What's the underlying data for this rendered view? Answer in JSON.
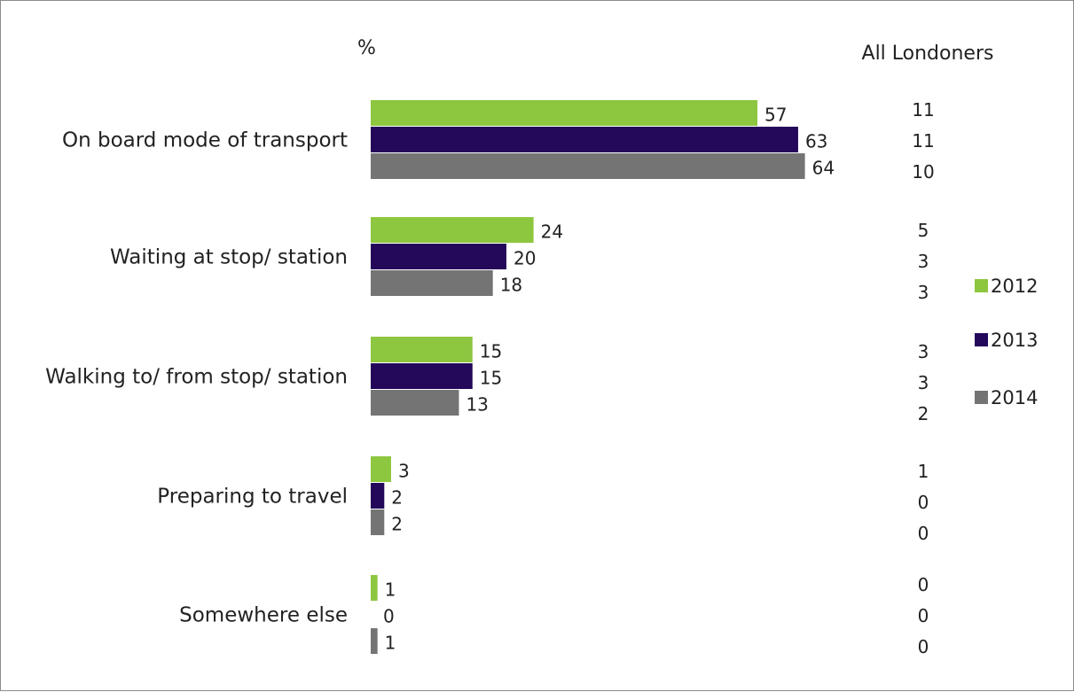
{
  "chart_data": {
    "type": "bar",
    "orientation": "horizontal",
    "value_axis_label": "%",
    "side_column_title": "All Londoners",
    "categories": [
      "On board mode of transport",
      "Waiting at stop/ station",
      "Walking to/ from stop/ station",
      "Preparing to travel",
      "Somewhere else"
    ],
    "series": [
      {
        "name": "2012",
        "color": "#8dc63f",
        "values": [
          57,
          24,
          15,
          3,
          1
        ],
        "all_londoners": [
          11,
          5,
          3,
          1,
          0
        ]
      },
      {
        "name": "2013",
        "color": "#24085a",
        "values": [
          63,
          20,
          15,
          2,
          0
        ],
        "all_londoners": [
          11,
          3,
          3,
          0,
          0
        ]
      },
      {
        "name": "2014",
        "color": "#747474",
        "values": [
          64,
          18,
          13,
          2,
          1
        ],
        "all_londoners": [
          10,
          3,
          2,
          0,
          0
        ]
      }
    ],
    "xlim": [
      0,
      100
    ],
    "grid": false,
    "legend_position": "right"
  }
}
